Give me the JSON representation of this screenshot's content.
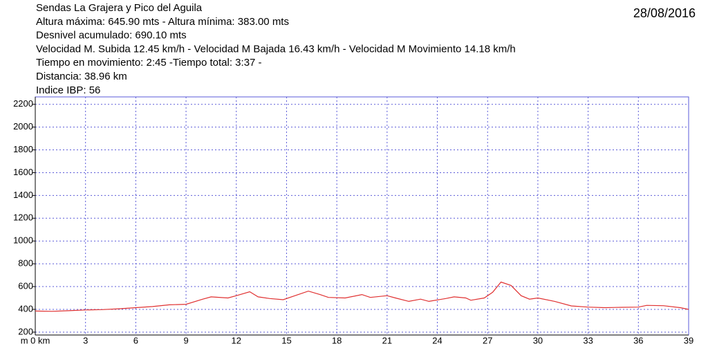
{
  "chart_data": {
    "type": "line",
    "header": [
      "Sendas La Grajera y Pico del Aguila",
      "Altura máxima: 645.90 mts - Altura mínima: 383.00 mts",
      " Desnivel acumulado: 690.10 mts",
      "Velocidad M. Subida 12.45 km/h - Velocidad M Bajada 16.43 km/h - Velocidad M Movimiento 14.18 km/h",
      " Tiempo en movimiento: 2:45 -Tiempo total: 3:37 -",
      "Distancia: 38.96 km",
      "Indice IBP: 56"
    ],
    "date": "28/08/2016",
    "x": [
      0,
      1,
      2,
      3,
      4,
      5,
      6,
      7,
      8,
      9,
      10,
      10.5,
      11.5,
      12,
      12.8,
      13.3,
      14,
      14.8,
      15.5,
      16.3,
      17,
      17.5,
      18.5,
      19.5,
      20,
      21,
      21.5,
      22.3,
      23,
      23.5,
      24.5,
      25,
      25.7,
      26,
      26.8,
      27.3,
      27.8,
      28.4,
      29,
      29.5,
      30,
      31,
      32,
      33,
      34,
      35,
      36,
      36.5,
      37.5,
      38.5,
      39
    ],
    "series": [
      {
        "name": "Altura",
        "color": "#e03030",
        "values": [
          385,
          383,
          388,
          395,
          398,
          405,
          415,
          425,
          440,
          445,
          490,
          510,
          500,
          520,
          555,
          510,
          495,
          485,
          520,
          560,
          530,
          505,
          500,
          530,
          505,
          520,
          500,
          470,
          490,
          470,
          495,
          510,
          500,
          480,
          500,
          550,
          640,
          610,
          520,
          490,
          500,
          470,
          430,
          420,
          415,
          418,
          420,
          435,
          432,
          415,
          400
        ]
      }
    ],
    "xlim": [
      0,
      39
    ],
    "ylim": [
      175,
      2265
    ],
    "xticks": [
      {
        "value": 0,
        "label": "m 0 km"
      },
      3,
      6,
      9,
      12,
      15,
      18,
      21,
      24,
      27,
      30,
      33,
      36,
      39
    ],
    "yticks": [
      200,
      400,
      600,
      800,
      1000,
      1200,
      1400,
      1600,
      1800,
      2000,
      2200
    ],
    "grid": true,
    "grid_color": "#5a5ad8"
  }
}
